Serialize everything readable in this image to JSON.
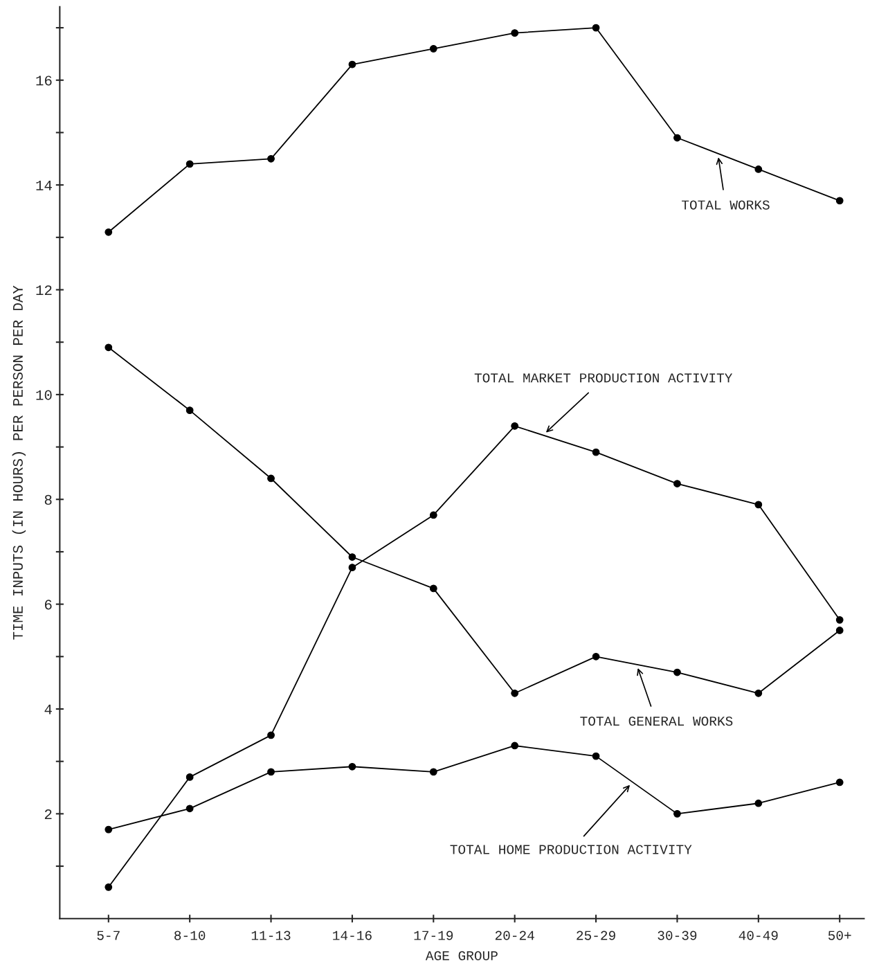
{
  "chart_data": {
    "type": "line",
    "xlabel": "AGE GROUP",
    "ylabel": "TIME INPUTS (IN HOURS) PER PERSON PER DAY",
    "categories": [
      "5-7",
      "8-10",
      "11-13",
      "14-16",
      "17-19",
      "20-24",
      "25-29",
      "30-39",
      "40-49",
      "50+"
    ],
    "series": [
      {
        "name": "TOTAL WORKS",
        "color": "#000000",
        "values": [
          13.1,
          14.4,
          14.5,
          16.3,
          16.6,
          16.9,
          17.0,
          14.9,
          14.3,
          13.7
        ]
      },
      {
        "name": "TOTAL GENERAL WORKS",
        "color": "#000000",
        "values": [
          10.9,
          9.7,
          8.4,
          6.9,
          6.3,
          4.3,
          5.0,
          4.7,
          4.3,
          5.5
        ]
      },
      {
        "name": "TOTAL MARKET PRODUCTION ACTIVITY",
        "color": "#000000",
        "values": [
          0.6,
          2.7,
          3.5,
          6.7,
          7.7,
          9.4,
          8.9,
          8.3,
          7.9,
          5.7
        ]
      },
      {
        "name": "TOTAL HOME PRODUCTION ACTIVITY",
        "color": "#000000",
        "values": [
          1.7,
          2.1,
          2.8,
          2.9,
          2.8,
          3.3,
          3.1,
          2.0,
          2.2,
          2.6
        ]
      }
    ],
    "ylim": [
      0,
      17.4
    ],
    "yticks": [
      {
        "value": 1,
        "label": null
      },
      2,
      {
        "value": 3,
        "label": null
      },
      4,
      {
        "value": 5,
        "label": null
      },
      6,
      {
        "value": 7,
        "label": null
      },
      8,
      {
        "value": 9,
        "label": null
      },
      10,
      {
        "value": 11,
        "label": null
      },
      12,
      {
        "value": 13,
        "label": null
      },
      14,
      {
        "value": 15,
        "label": null
      },
      16,
      {
        "value": 17,
        "label": null
      }
    ],
    "grid": false,
    "marker": "circle",
    "line_style": "solid"
  }
}
